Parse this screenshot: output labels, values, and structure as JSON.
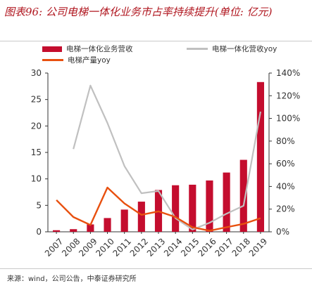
{
  "figure": {
    "title": "图表96: 公司电梯一体化业务市占率持续提升(单位: 亿元)",
    "source": "来源：wind，公司公告，中泰证券研究所"
  },
  "colors": {
    "bars": "#c40d2e",
    "yoy_gray": "#c0c0c0",
    "yoy_orange": "#e8500f",
    "accent_title": "#b0161f"
  },
  "chart_data": {
    "type": "bar",
    "categories": [
      "2007",
      "2008",
      "2009",
      "2010",
      "2011",
      "2012",
      "2013",
      "2014",
      "2015",
      "2016",
      "2017",
      "2018",
      "2019"
    ],
    "series": [
      {
        "name": "电梯一体化业务营收",
        "type": "bar",
        "axis": "left",
        "values": [
          0.3,
          0.5,
          1.4,
          2.6,
          4.2,
          5.7,
          7.9,
          8.8,
          8.9,
          9.7,
          11.2,
          13.6,
          28.3
        ]
      },
      {
        "name": "电梯一体化营收yoy",
        "type": "line",
        "axis": "right",
        "values": [
          null,
          73,
          129,
          96,
          58,
          34,
          36,
          12,
          2,
          8,
          16,
          23,
          106
        ]
      },
      {
        "name": "电梯产量yoy",
        "type": "line",
        "axis": "right",
        "values": [
          28,
          13,
          6,
          39,
          25,
          15,
          18,
          13,
          4,
          1,
          4,
          7,
          12
        ]
      }
    ],
    "y_left": {
      "min": 0,
      "max": 30,
      "ticks": [
        0,
        5,
        10,
        15,
        20,
        25,
        30
      ]
    },
    "y_right": {
      "min": 0,
      "max": 140,
      "ticks": [
        "0%",
        "20%",
        "40%",
        "60%",
        "80%",
        "100%",
        "120%",
        "140%"
      ]
    },
    "legend_position": "top",
    "grid": false
  }
}
